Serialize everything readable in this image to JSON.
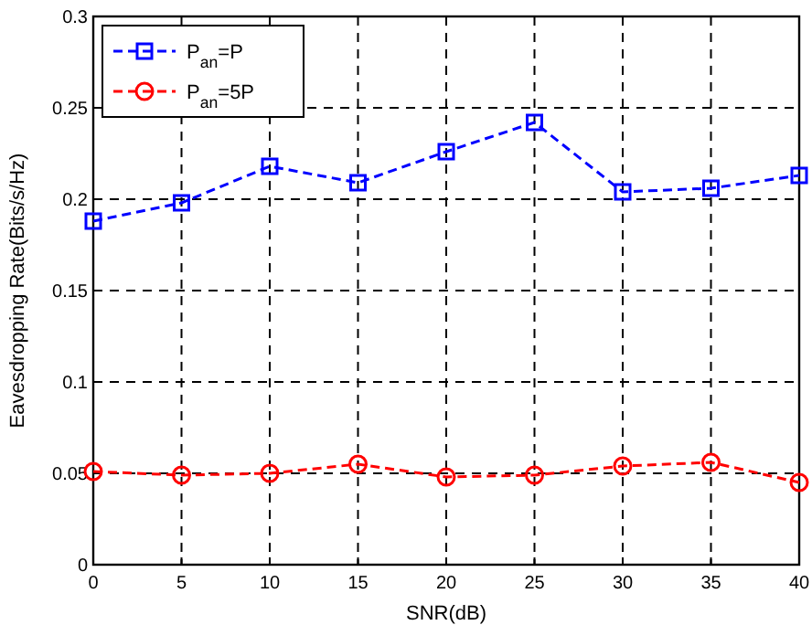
{
  "chart_data": {
    "type": "line",
    "xlabel": "SNR(dB)",
    "ylabel": "Eavesdropping Rate(Bits/s/Hz)",
    "x": [
      0,
      5,
      10,
      15,
      20,
      25,
      30,
      35,
      40
    ],
    "series": [
      {
        "name": "P$_{an}$=P",
        "color": "#0000ff",
        "marker": "square",
        "values": [
          0.188,
          0.198,
          0.218,
          0.209,
          0.226,
          0.242,
          0.204,
          0.206,
          0.213
        ]
      },
      {
        "name": "P$_{an}$=5P",
        "color": "#ff0000",
        "marker": "circle",
        "values": [
          0.051,
          0.049,
          0.05,
          0.055,
          0.048,
          0.049,
          0.054,
          0.056,
          0.045
        ]
      }
    ],
    "xlim": [
      0,
      40
    ],
    "xticks": [
      0,
      5,
      10,
      15,
      20,
      25,
      30,
      35,
      40
    ],
    "ylim": [
      0,
      0.3
    ],
    "yticks": [
      0,
      0.05,
      0.1,
      0.15,
      0.2,
      0.25,
      0.3
    ],
    "grid": true,
    "legend": "top left",
    "line_style": "dashed"
  }
}
